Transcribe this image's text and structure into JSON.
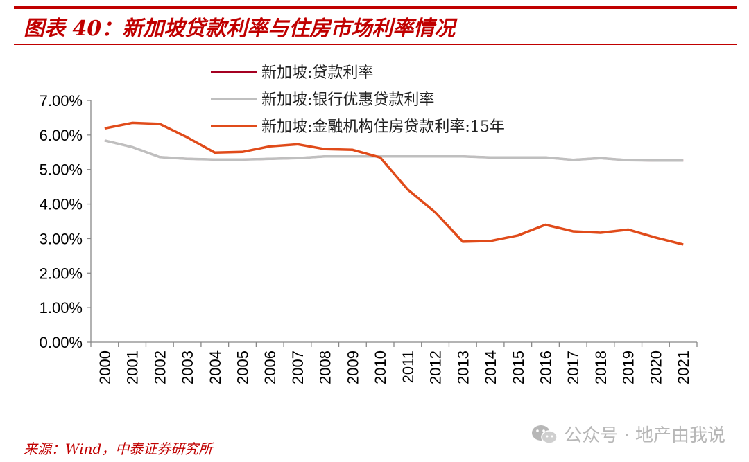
{
  "header": {
    "title": "图表 40：新加坡贷款利率与住房市场利率情况"
  },
  "colors": {
    "accent": "#c00000",
    "series_1": "#a50021",
    "series_2": "#bfbfbf",
    "series_3": "#e04b1a"
  },
  "chart_data": {
    "type": "line",
    "title": "",
    "xlabel": "",
    "ylabel": "",
    "categories": [
      "2000",
      "2001",
      "2002",
      "2003",
      "2004",
      "2005",
      "2006",
      "2007",
      "2008",
      "2009",
      "2010",
      "2011",
      "2012",
      "2013",
      "2014",
      "2015",
      "2016",
      "2017",
      "2018",
      "2019",
      "2020",
      "2021"
    ],
    "ylim": [
      0,
      0.07
    ],
    "yticks": [
      {
        "value": 0.0,
        "label": "0.00%"
      },
      {
        "value": 0.01,
        "label": "1.00%"
      },
      {
        "value": 0.02,
        "label": "2.00%"
      },
      {
        "value": 0.03,
        "label": "3.00%"
      },
      {
        "value": 0.04,
        "label": "4.00%"
      },
      {
        "value": 0.05,
        "label": "5.00%"
      },
      {
        "value": 0.06,
        "label": "6.00%"
      },
      {
        "value": 0.07,
        "label": "7.00%"
      }
    ],
    "grid": false,
    "legend_position": "top",
    "series": [
      {
        "name": "新加坡:贷款利率",
        "color": "#a50021",
        "values": [
          0.0584,
          0.0565,
          0.0536,
          0.0531,
          0.0529,
          0.0529,
          0.0531,
          0.0533,
          0.0538,
          0.0538,
          0.0538,
          0.0538,
          0.0538,
          0.0538,
          0.0535,
          0.0535,
          0.0535,
          0.0528,
          0.0533,
          0.0527,
          0.0526,
          0.0526
        ]
      },
      {
        "name": "新加坡:银行优惠贷款利率",
        "color": "#bfbfbf",
        "values": [
          0.0584,
          0.0565,
          0.0536,
          0.0531,
          0.0529,
          0.0529,
          0.0531,
          0.0533,
          0.0538,
          0.0538,
          0.0538,
          0.0538,
          0.0538,
          0.0538,
          0.0535,
          0.0535,
          0.0535,
          0.0528,
          0.0533,
          0.0527,
          0.0526,
          0.0526
        ]
      },
      {
        "name": "新加坡:金融机构住房贷款利率:15年",
        "color": "#e04b1a",
        "values": [
          0.0619,
          0.0635,
          0.0632,
          0.0593,
          0.0549,
          0.0551,
          0.0567,
          0.0573,
          0.0559,
          0.0557,
          0.0535,
          0.0442,
          0.0376,
          0.0291,
          0.0293,
          0.0309,
          0.034,
          0.0321,
          0.0317,
          0.0326,
          0.0303,
          0.0283
        ]
      }
    ]
  },
  "footer": {
    "source": "来源：Wind，中泰证券研究所"
  },
  "watermark": {
    "text": "公众号 · 地产由我说",
    "icon": "wechat-icon"
  }
}
